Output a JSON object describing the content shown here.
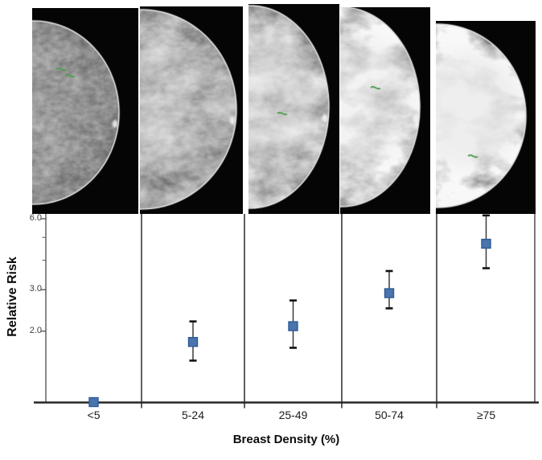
{
  "figure": {
    "description": "Composite figure: five mammograms of increasing breast density above a relative-risk chart"
  },
  "panels": [
    {
      "name": "mammogram-density-lt5",
      "category": "<5"
    },
    {
      "name": "mammogram-density-5-24",
      "category": "5-24"
    },
    {
      "name": "mammogram-density-25-49",
      "category": "25-49"
    },
    {
      "name": "mammogram-density-50-74",
      "category": "50-74"
    },
    {
      "name": "mammogram-density-ge75",
      "category": "≥75"
    }
  ],
  "chart_data": {
    "type": "scatter",
    "categories": [
      "<5",
      "5-24",
      "25-49",
      "50-74",
      "≥75"
    ],
    "values": [
      1.0,
      1.8,
      2.1,
      2.9,
      4.7
    ],
    "ci_low": [
      null,
      1.5,
      1.7,
      2.5,
      3.7
    ],
    "ci_high": [
      null,
      2.2,
      2.7,
      3.6,
      6.2
    ],
    "title": "",
    "xlabel": "Breast Density (%)",
    "ylabel": "Relative Risk",
    "yscale": "log",
    "ylim": [
      1.0,
      6.3
    ],
    "ytick_values": [
      6.0,
      3.0,
      2.0
    ],
    "ytick_labels": [
      "6.0",
      "3.0",
      "2.0"
    ],
    "yticks_minor": [
      5.0,
      4.0
    ],
    "grid": false,
    "legend": null,
    "marker_color": "#4a74ad",
    "marker_border": "#2e5a96",
    "errorbar_color": "#3a3a3a",
    "axis_color": "#262626"
  }
}
